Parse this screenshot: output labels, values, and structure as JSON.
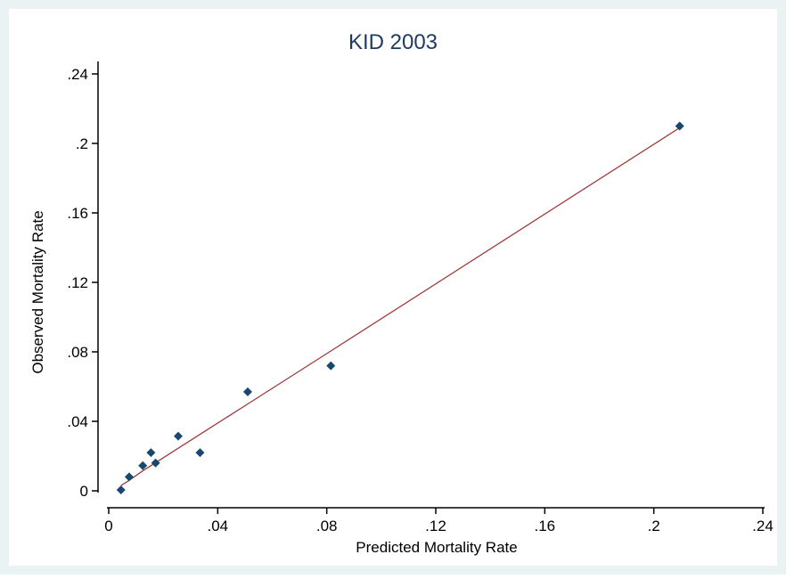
{
  "chart_data": {
    "type": "scatter",
    "title": "KID 2003",
    "xlabel": "Predicted Mortality Rate",
    "ylabel": "Observed Mortality Rate",
    "xlim": [
      0,
      0.24
    ],
    "ylim": [
      0,
      0.24
    ],
    "x_ticks": [
      {
        "value": 0,
        "label": "0"
      },
      {
        "value": 0.04,
        "label": ".04"
      },
      {
        "value": 0.08,
        "label": ".08"
      },
      {
        "value": 0.12,
        "label": ".12"
      },
      {
        "value": 0.16,
        "label": ".16"
      },
      {
        "value": 0.2,
        "label": ".2"
      },
      {
        "value": 0.24,
        "label": ".24"
      }
    ],
    "y_ticks": [
      {
        "value": 0,
        "label": "0"
      },
      {
        "value": 0.04,
        "label": ".04"
      },
      {
        "value": 0.08,
        "label": ".08"
      },
      {
        "value": 0.12,
        "label": ".12"
      },
      {
        "value": 0.16,
        "label": ".16"
      },
      {
        "value": 0.2,
        "label": ".2"
      },
      {
        "value": 0.24,
        "label": ".24"
      }
    ],
    "grid": false,
    "series": [
      {
        "kind": "points",
        "marker": "diamond",
        "color": "#1a476f",
        "points": [
          {
            "x": 0.0045,
            "y": 0.0005
          },
          {
            "x": 0.0075,
            "y": 0.008
          },
          {
            "x": 0.0125,
            "y": 0.0145
          },
          {
            "x": 0.0155,
            "y": 0.022
          },
          {
            "x": 0.0172,
            "y": 0.016
          },
          {
            "x": 0.0255,
            "y": 0.0315
          },
          {
            "x": 0.0335,
            "y": 0.022
          },
          {
            "x": 0.051,
            "y": 0.057
          },
          {
            "x": 0.0815,
            "y": 0.072
          },
          {
            "x": 0.2095,
            "y": 0.21
          }
        ]
      },
      {
        "kind": "line",
        "color": "#a03a3a",
        "points": [
          {
            "x": 0.0045,
            "y": 0.003
          },
          {
            "x": 0.0075,
            "y": 0.006
          },
          {
            "x": 0.0125,
            "y": 0.0115
          },
          {
            "x": 0.0172,
            "y": 0.0162
          },
          {
            "x": 0.0255,
            "y": 0.0245
          },
          {
            "x": 0.0335,
            "y": 0.0325
          },
          {
            "x": 0.051,
            "y": 0.05
          },
          {
            "x": 0.0815,
            "y": 0.0805
          },
          {
            "x": 0.2095,
            "y": 0.209
          }
        ]
      }
    ],
    "colors": {
      "outer_background": "#eaf2f3",
      "plot_background": "#ffffff",
      "title": "#1e3a5f",
      "axis": "#000000"
    }
  }
}
